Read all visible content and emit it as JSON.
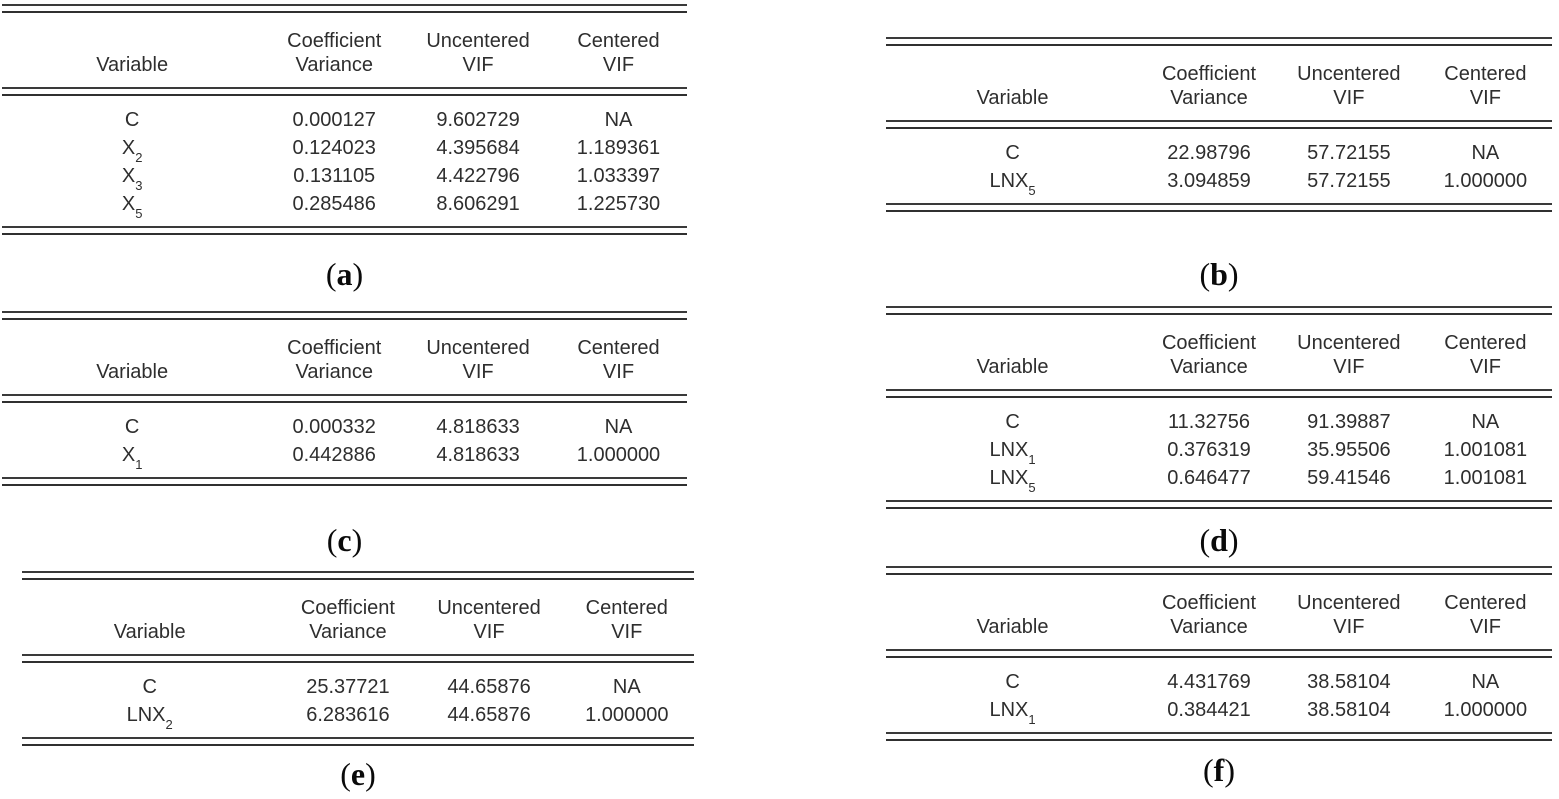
{
  "figure": {
    "colors": {
      "background": "#ffffff",
      "table_text": "#2e2e2e",
      "rule": "#3a3a3a",
      "label_text": "#0a0a0a"
    },
    "punct": {
      "open": "(",
      "close": ")"
    },
    "columns": [
      {
        "lines": [
          "Variable"
        ]
      },
      {
        "lines": [
          "Coefficient",
          "Variance"
        ]
      },
      {
        "lines": [
          "Uncentered",
          "VIF"
        ]
      },
      {
        "lines": [
          "Centered",
          "VIF"
        ]
      }
    ],
    "tables": [
      {
        "label": "a",
        "rows": [
          {
            "variable": "C",
            "sub": "",
            "values": [
              "0.000127",
              "9.602729",
              "NA"
            ]
          },
          {
            "variable": "X",
            "sub": "2",
            "values": [
              "0.124023",
              "4.395684",
              "1.189361"
            ]
          },
          {
            "variable": "X",
            "sub": "3",
            "values": [
              "0.131105",
              "4.422796",
              "1.033397"
            ]
          },
          {
            "variable": "X",
            "sub": "5",
            "values": [
              "0.285486",
              "8.606291",
              "1.225730"
            ]
          }
        ]
      },
      {
        "label": "b",
        "rows": [
          {
            "variable": "C",
            "sub": "",
            "values": [
              "22.98796",
              "57.72155",
              "NA"
            ]
          },
          {
            "variable": "LNX",
            "sub": "5",
            "values": [
              "3.094859",
              "57.72155",
              "1.000000"
            ]
          }
        ]
      },
      {
        "label": "c",
        "rows": [
          {
            "variable": "C",
            "sub": "",
            "values": [
              "0.000332",
              "4.818633",
              "NA"
            ]
          },
          {
            "variable": "X",
            "sub": "1",
            "values": [
              "0.442886",
              "4.818633",
              "1.000000"
            ]
          }
        ]
      },
      {
        "label": "d",
        "rows": [
          {
            "variable": "C",
            "sub": "",
            "values": [
              "11.32756",
              "91.39887",
              "NA"
            ]
          },
          {
            "variable": "LNX",
            "sub": "1",
            "values": [
              "0.376319",
              "35.95506",
              "1.001081"
            ]
          },
          {
            "variable": "LNX",
            "sub": "5",
            "values": [
              "0.646477",
              "59.41546",
              "1.001081"
            ]
          }
        ]
      },
      {
        "label": "e",
        "rows": [
          {
            "variable": "C",
            "sub": "",
            "values": [
              "25.37721",
              "44.65876",
              "NA"
            ]
          },
          {
            "variable": "LNX",
            "sub": "2",
            "values": [
              "6.283616",
              "44.65876",
              "1.000000"
            ]
          }
        ]
      },
      {
        "label": "f",
        "rows": [
          {
            "variable": "C",
            "sub": "",
            "values": [
              "4.431769",
              "38.58104",
              "NA"
            ]
          },
          {
            "variable": "LNX",
            "sub": "1",
            "values": [
              "0.384421",
              "38.58104",
              "1.000000"
            ]
          }
        ]
      }
    ]
  }
}
